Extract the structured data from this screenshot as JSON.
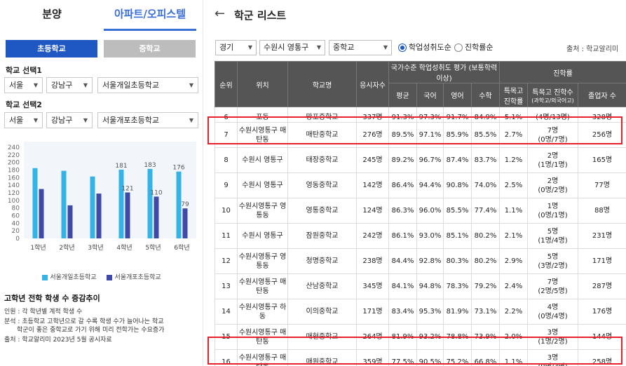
{
  "tabs": [
    "분양",
    "아파트/오피스텔"
  ],
  "school_buttons": [
    "초등학교",
    "중학교"
  ],
  "select1": {
    "label": "학교 선택1",
    "region": "서울",
    "district": "강남구",
    "school": "서울개일초등학교"
  },
  "select2": {
    "label": "학교 선택2",
    "region": "서울",
    "district": "강남구",
    "school": "서울개포초등학교"
  },
  "chart_data": {
    "type": "bar",
    "categories": [
      "1학년",
      "2학년",
      "3학년",
      "4학년",
      "5학년",
      "6학년"
    ],
    "series": [
      {
        "name": "서울개일초등학교",
        "values": [
          185,
          178,
          163,
          181,
          183,
          176
        ],
        "color": "#34b3e6"
      },
      {
        "name": "서울개포초등학교",
        "values": [
          130,
          87,
          118,
          121,
          110,
          79
        ],
        "color": "#3f4aa8"
      }
    ],
    "data_labels": {
      "s1": [
        "",
        "",
        "",
        "181",
        "183",
        "176"
      ],
      "s2": [
        "",
        "",
        "",
        "121",
        "110",
        "79"
      ]
    },
    "yticks": [
      "0",
      "20",
      "40",
      "60",
      "80",
      "100",
      "120",
      "140",
      "160",
      "180",
      "200",
      "220",
      "240"
    ],
    "ylim": [
      0,
      240
    ],
    "legend": "bottom"
  },
  "notes": {
    "title": "고학년 전학 학생 수 증감추이",
    "lines": [
      "인원 : 각 학년별 계적 학생 수",
      "분석 : 초등학교 고학년으로 갈 수록 학생 수가 늘어나는 학교",
      "학군이 좋은 중학교로 가기 위해 미리 전학가는 수요증가",
      "출처 : 학교알리미 2023년 5월 공시자료"
    ]
  },
  "header": {
    "back_icon": "←",
    "title": "학군 리스트"
  },
  "filters": {
    "region": "경기",
    "city": "수원시 영통구",
    "level": "중학교"
  },
  "radios": [
    "학업성취도순",
    "진학률순"
  ],
  "source": "출처 : 학교알리미",
  "table": {
    "headers": {
      "rank": "순위",
      "location": "위치",
      "school": "학교명",
      "applicants": "응시자수",
      "national_group": "국가수준 학업성취도 평가 (보통학력이상)",
      "avg": "평균",
      "korean": "국어",
      "english": "영어",
      "math": "수학",
      "advance_group": "진학률",
      "special_rate": "특목고 진학률",
      "special_count": "특목고 진학수",
      "special_count_sub": "(과학고/외국어고)",
      "graduates": "졸업자 수"
    },
    "cut_row": {
      "rank": "6",
      "location": "포동",
      "school": "망포중학교",
      "applicants": "337명",
      "avg": "91.3%",
      "korean": "97.3%",
      "english": "91.7%",
      "math": "84.9%",
      "special_rate": "5.1%",
      "special_count": "(4명/13명)",
      "graduates": "328명"
    },
    "rows": [
      {
        "rank": "7",
        "location": "수원시영통구 매탄동",
        "school": "매탄중학교",
        "applicants": "276명",
        "avg": "89.5%",
        "korean": "97.1%",
        "english": "85.9%",
        "math": "85.5%",
        "special_rate": "2.7%",
        "special_count": "7명",
        "special_detail": "(0명/7명)",
        "graduates": "256명"
      },
      {
        "rank": "8",
        "location": "수원시 영통구",
        "school": "태장중학교",
        "applicants": "245명",
        "avg": "89.2%",
        "korean": "96.7%",
        "english": "87.4%",
        "math": "83.7%",
        "special_rate": "1.2%",
        "special_count": "2명",
        "special_detail": "(1명/1명)",
        "graduates": "165명"
      },
      {
        "rank": "9",
        "location": "수원시 영통구",
        "school": "영동중학교",
        "applicants": "142명",
        "avg": "86.4%",
        "korean": "94.4%",
        "english": "90.8%",
        "math": "74.0%",
        "special_rate": "2.5%",
        "special_count": "2명",
        "special_detail": "(0명/2명)",
        "graduates": "77명"
      },
      {
        "rank": "10",
        "location": "수원시영통구 영통동",
        "school": "영통중학교",
        "applicants": "124명",
        "avg": "86.3%",
        "korean": "96.0%",
        "english": "85.5%",
        "math": "77.4%",
        "special_rate": "1.1%",
        "special_count": "1명",
        "special_detail": "(0명/1명)",
        "graduates": "88명"
      },
      {
        "rank": "11",
        "location": "수원시 영통구",
        "school": "잠원중학교",
        "applicants": "242명",
        "avg": "86.1%",
        "korean": "93.0%",
        "english": "85.1%",
        "math": "80.2%",
        "special_rate": "2.1%",
        "special_count": "5명",
        "special_detail": "(1명/4명)",
        "graduates": "231명"
      },
      {
        "rank": "12",
        "location": "수원시영통구 영통동",
        "school": "청명중학교",
        "applicants": "238명",
        "avg": "84.4%",
        "korean": "92.8%",
        "english": "80.3%",
        "math": "80.2%",
        "special_rate": "2.9%",
        "special_count": "5명",
        "special_detail": "(3명/2명)",
        "graduates": "171명"
      },
      {
        "rank": "13",
        "location": "수원시영통구 매탄동",
        "school": "산남중학교",
        "applicants": "345명",
        "avg": "84.1%",
        "korean": "94.8%",
        "english": "78.3%",
        "math": "79.2%",
        "special_rate": "2.4%",
        "special_count": "7명",
        "special_detail": "(2명/5명)",
        "graduates": "287명"
      },
      {
        "rank": "14",
        "location": "수원시영통구 하동",
        "school": "이의중학교",
        "applicants": "171명",
        "avg": "83.4%",
        "korean": "95.3%",
        "english": "81.9%",
        "math": "73.1%",
        "special_rate": "2.2%",
        "special_count": "4명",
        "special_detail": "(0명/4명)",
        "graduates": "176명"
      },
      {
        "rank": "15",
        "location": "수원시영통구 매탄동",
        "school": "매현중학교",
        "applicants": "264명",
        "avg": "81.9%",
        "korean": "93.2%",
        "english": "78.8%",
        "math": "73.9%",
        "special_rate": "2.0%",
        "special_count": "3명",
        "special_detail": "(1명/2명)",
        "graduates": "144명"
      },
      {
        "rank": "16",
        "location": "수원시영통구 매탄동",
        "school": "매원중학교",
        "applicants": "359명",
        "avg": "77.5%",
        "korean": "90.5%",
        "english": "75.2%",
        "math": "66.8%",
        "special_rate": "1.1%",
        "special_count": "3명",
        "special_detail": "(0명/3명)",
        "graduates": "258명"
      }
    ]
  },
  "highlight_color": "#e8202a"
}
